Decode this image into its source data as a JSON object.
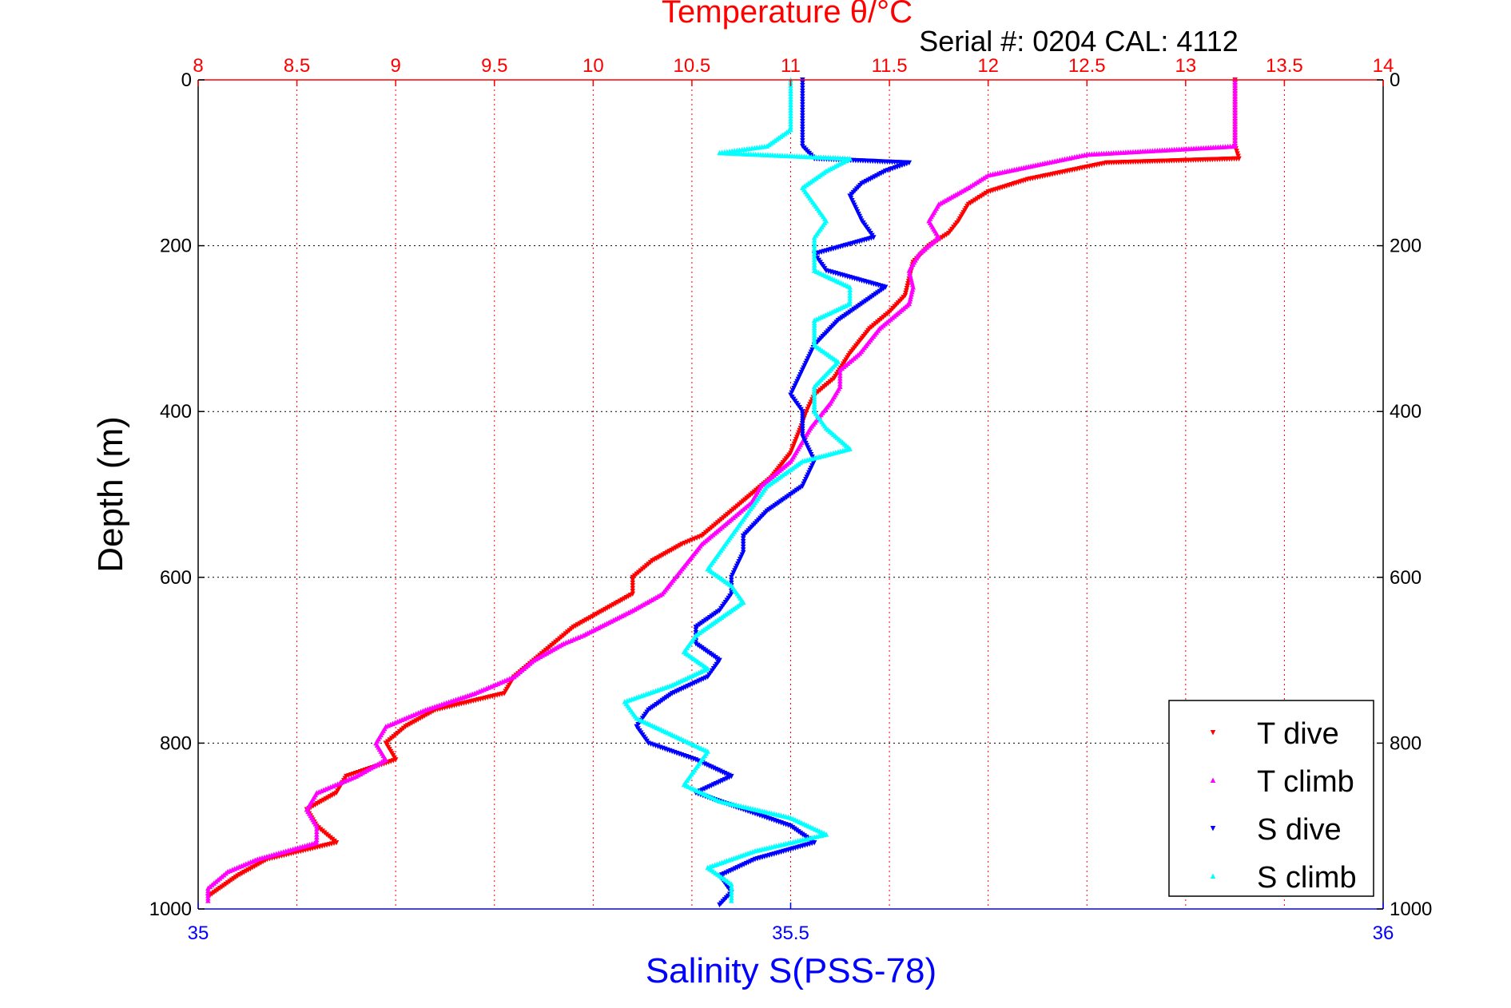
{
  "chart_data": {
    "type": "scatter",
    "top_axis": {
      "label": "Temperature θ/°C",
      "range": [
        8,
        14
      ],
      "ticks": [
        8,
        8.5,
        9,
        9.5,
        10,
        10.5,
        11,
        11.5,
        12,
        12.5,
        13,
        13.5,
        14
      ],
      "tick_labels": [
        "8",
        "8.5",
        "9",
        "9.5",
        "10",
        "10.5",
        "11",
        "11.5",
        "12",
        "12.5",
        "13",
        "13.5",
        "14"
      ],
      "color": "#ff0000"
    },
    "bottom_axis": {
      "label": "Salinity S(PSS-78)",
      "range": [
        35,
        36
      ],
      "ticks": [
        35,
        35.5,
        36
      ],
      "tick_labels": [
        "35",
        "35.5",
        "36"
      ],
      "color": "#0000ff"
    },
    "y_axis": {
      "label": "Depth (m)",
      "range": [
        0,
        1000
      ],
      "reversed": true,
      "ticks": [
        0,
        200,
        400,
        600,
        800,
        1000
      ],
      "tick_labels": [
        "0",
        "200",
        "400",
        "600",
        "800",
        "1000"
      ]
    },
    "annotation": "Serial #: 0204  CAL: 4112",
    "grid": true,
    "legend_position": "bottom-right",
    "series": [
      {
        "name": "T dive",
        "axis": "temperature",
        "color": "#ff0000",
        "marker": "triangle-down",
        "points": [
          [
            13.25,
            0
          ],
          [
            13.25,
            20
          ],
          [
            13.25,
            40
          ],
          [
            13.25,
            60
          ],
          [
            13.25,
            80
          ],
          [
            13.27,
            95
          ],
          [
            12.6,
            100
          ],
          [
            12.4,
            110
          ],
          [
            12.2,
            120
          ],
          [
            12.0,
            135
          ],
          [
            11.9,
            150
          ],
          [
            11.85,
            170
          ],
          [
            11.8,
            185
          ],
          [
            11.7,
            200
          ],
          [
            11.62,
            220
          ],
          [
            11.6,
            240
          ],
          [
            11.58,
            260
          ],
          [
            11.5,
            280
          ],
          [
            11.4,
            300
          ],
          [
            11.3,
            330
          ],
          [
            11.22,
            360
          ],
          [
            11.12,
            380
          ],
          [
            11.08,
            400
          ],
          [
            11.05,
            420
          ],
          [
            11.0,
            450
          ],
          [
            10.9,
            480
          ],
          [
            10.75,
            510
          ],
          [
            10.65,
            530
          ],
          [
            10.55,
            550
          ],
          [
            10.45,
            560
          ],
          [
            10.3,
            580
          ],
          [
            10.2,
            600
          ],
          [
            10.2,
            620
          ],
          [
            10.05,
            640
          ],
          [
            9.9,
            660
          ],
          [
            9.8,
            680
          ],
          [
            9.7,
            700
          ],
          [
            9.6,
            720
          ],
          [
            9.55,
            740
          ],
          [
            9.2,
            760
          ],
          [
            9.05,
            780
          ],
          [
            8.95,
            800
          ],
          [
            9.0,
            820
          ],
          [
            8.75,
            840
          ],
          [
            8.7,
            860
          ],
          [
            8.55,
            880
          ],
          [
            8.6,
            900
          ],
          [
            8.7,
            920
          ],
          [
            8.35,
            940
          ],
          [
            8.2,
            960
          ],
          [
            8.05,
            985
          ]
        ]
      },
      {
        "name": "T climb",
        "axis": "temperature",
        "color": "#ff00ff",
        "marker": "triangle-up",
        "points": [
          [
            13.25,
            0
          ],
          [
            13.25,
            20
          ],
          [
            13.25,
            40
          ],
          [
            13.25,
            60
          ],
          [
            13.25,
            80
          ],
          [
            12.5,
            90
          ],
          [
            12.3,
            100
          ],
          [
            12.0,
            115
          ],
          [
            11.9,
            130
          ],
          [
            11.75,
            150
          ],
          [
            11.7,
            170
          ],
          [
            11.75,
            190
          ],
          [
            11.65,
            210
          ],
          [
            11.6,
            230
          ],
          [
            11.62,
            250
          ],
          [
            11.6,
            270
          ],
          [
            11.45,
            300
          ],
          [
            11.35,
            330
          ],
          [
            11.25,
            350
          ],
          [
            11.25,
            370
          ],
          [
            11.2,
            390
          ],
          [
            11.1,
            420
          ],
          [
            11.05,
            440
          ],
          [
            11.0,
            460
          ],
          [
            10.85,
            490
          ],
          [
            10.8,
            510
          ],
          [
            10.7,
            530
          ],
          [
            10.55,
            560
          ],
          [
            10.45,
            590
          ],
          [
            10.35,
            620
          ],
          [
            10.2,
            640
          ],
          [
            9.95,
            670
          ],
          [
            9.85,
            680
          ],
          [
            9.7,
            700
          ],
          [
            9.6,
            720
          ],
          [
            9.4,
            740
          ],
          [
            9.15,
            760
          ],
          [
            8.95,
            780
          ],
          [
            8.9,
            800
          ],
          [
            8.95,
            820
          ],
          [
            8.8,
            840
          ],
          [
            8.6,
            860
          ],
          [
            8.55,
            880
          ],
          [
            8.6,
            900
          ],
          [
            8.6,
            920
          ],
          [
            8.3,
            940
          ],
          [
            8.15,
            955
          ],
          [
            8.05,
            975
          ],
          [
            8.05,
            990
          ]
        ]
      },
      {
        "name": "S dive",
        "axis": "salinity",
        "color": "#0000ff",
        "marker": "triangle-down",
        "points": [
          [
            35.51,
            0
          ],
          [
            35.51,
            20
          ],
          [
            35.51,
            40
          ],
          [
            35.51,
            60
          ],
          [
            35.51,
            80
          ],
          [
            35.52,
            95
          ],
          [
            35.6,
            100
          ],
          [
            35.58,
            110
          ],
          [
            35.56,
            125
          ],
          [
            35.55,
            140
          ],
          [
            35.56,
            170
          ],
          [
            35.57,
            190
          ],
          [
            35.52,
            210
          ],
          [
            35.53,
            230
          ],
          [
            35.58,
            250
          ],
          [
            35.56,
            270
          ],
          [
            35.54,
            290
          ],
          [
            35.52,
            320
          ],
          [
            35.51,
            350
          ],
          [
            35.5,
            380
          ],
          [
            35.51,
            400
          ],
          [
            35.51,
            430
          ],
          [
            35.52,
            460
          ],
          [
            35.51,
            490
          ],
          [
            35.48,
            520
          ],
          [
            35.46,
            550
          ],
          [
            35.46,
            570
          ],
          [
            35.45,
            600
          ],
          [
            35.45,
            620
          ],
          [
            35.44,
            640
          ],
          [
            35.42,
            660
          ],
          [
            35.42,
            680
          ],
          [
            35.44,
            700
          ],
          [
            35.43,
            720
          ],
          [
            35.4,
            740
          ],
          [
            35.38,
            760
          ],
          [
            35.37,
            780
          ],
          [
            35.38,
            800
          ],
          [
            35.42,
            820
          ],
          [
            35.45,
            840
          ],
          [
            35.42,
            860
          ],
          [
            35.46,
            880
          ],
          [
            35.5,
            900
          ],
          [
            35.52,
            920
          ],
          [
            35.47,
            940
          ],
          [
            35.44,
            960
          ],
          [
            35.45,
            980
          ],
          [
            35.44,
            995
          ]
        ]
      },
      {
        "name": "S climb",
        "axis": "salinity",
        "color": "#00ffff",
        "marker": "triangle-up",
        "points": [
          [
            35.5,
            0
          ],
          [
            35.5,
            20
          ],
          [
            35.5,
            40
          ],
          [
            35.5,
            60
          ],
          [
            35.48,
            80
          ],
          [
            35.44,
            88
          ],
          [
            35.55,
            95
          ],
          [
            35.53,
            110
          ],
          [
            35.51,
            130
          ],
          [
            35.52,
            150
          ],
          [
            35.53,
            170
          ],
          [
            35.52,
            190
          ],
          [
            35.52,
            210
          ],
          [
            35.52,
            230
          ],
          [
            35.55,
            250
          ],
          [
            35.55,
            270
          ],
          [
            35.52,
            290
          ],
          [
            35.52,
            320
          ],
          [
            35.54,
            340
          ],
          [
            35.52,
            370
          ],
          [
            35.52,
            400
          ],
          [
            35.53,
            420
          ],
          [
            35.55,
            445
          ],
          [
            35.51,
            460
          ],
          [
            35.48,
            490
          ],
          [
            35.47,
            510
          ],
          [
            35.46,
            530
          ],
          [
            35.45,
            550
          ],
          [
            35.44,
            570
          ],
          [
            35.43,
            590
          ],
          [
            35.45,
            610
          ],
          [
            35.46,
            630
          ],
          [
            35.44,
            650
          ],
          [
            35.42,
            670
          ],
          [
            35.41,
            690
          ],
          [
            35.43,
            710
          ],
          [
            35.4,
            730
          ],
          [
            35.36,
            750
          ],
          [
            35.37,
            770
          ],
          [
            35.4,
            790
          ],
          [
            35.43,
            810
          ],
          [
            35.42,
            830
          ],
          [
            35.41,
            850
          ],
          [
            35.44,
            870
          ],
          [
            35.5,
            890
          ],
          [
            35.53,
            910
          ],
          [
            35.47,
            930
          ],
          [
            35.43,
            950
          ],
          [
            35.45,
            970
          ],
          [
            35.45,
            990
          ]
        ]
      }
    ]
  }
}
